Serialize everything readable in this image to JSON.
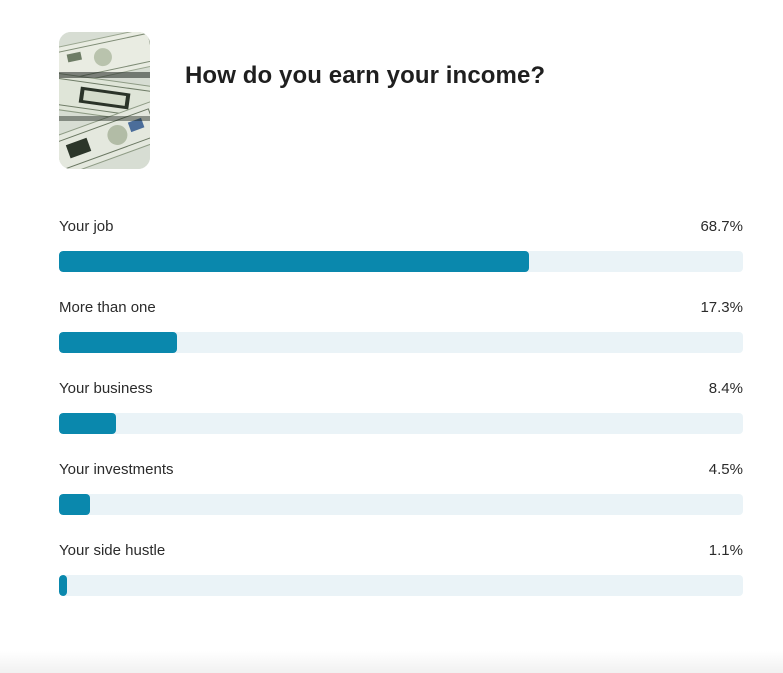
{
  "poll": {
    "question": "How do you earn your income?",
    "thumbnail_icon": "money-bills-image",
    "accent_color": "#0a88ad",
    "track_color": "#eaf3f7",
    "options": [
      {
        "label": "Your job",
        "percent_text": "68.7%",
        "percent": 68.7
      },
      {
        "label": "More than one",
        "percent_text": "17.3%",
        "percent": 17.3
      },
      {
        "label": "Your business",
        "percent_text": "8.4%",
        "percent": 8.4
      },
      {
        "label": "Your investments",
        "percent_text": "4.5%",
        "percent": 4.5
      },
      {
        "label": "Your side hustle",
        "percent_text": "1.1%",
        "percent": 1.1
      }
    ]
  }
}
